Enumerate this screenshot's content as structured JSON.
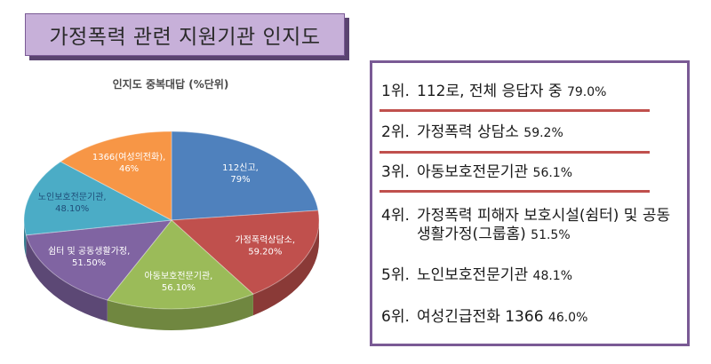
{
  "title": "가정폭력 관련 지원기관 인지도",
  "chart_data": {
    "type": "pie",
    "title": "인지도 중복대답 (%단위)",
    "slices": [
      {
        "label": "112신고",
        "value": 79,
        "display": "112신고, 79%",
        "color": "#4f81bd",
        "text_color": "#ffffff"
      },
      {
        "label": "가정폭력상담소",
        "value": 59.2,
        "display": "가정폭력상담소, 59.20%",
        "color": "#c0504d",
        "text_color": "#ffffff"
      },
      {
        "label": "아동보호전문기관",
        "value": 56.1,
        "display": "아동보호전문기관, 56.10%",
        "color": "#9bbb59",
        "text_color": "#ffffff"
      },
      {
        "label": "쉼터 및 공동생활가정",
        "value": 51.5,
        "display": "쉼터 및 공동생활가정, 51.50%",
        "color": "#8064a2",
        "text_color": "#ffffff"
      },
      {
        "label": "노인보호전문기관",
        "value": 48.1,
        "display": "노인보호전문기관, 48.10%",
        "color": "#4bacc6",
        "text_color": "#1f4e79"
      },
      {
        "label": "1366(여성의전화)",
        "value": 46,
        "display": "1366(여성의전화), 46%",
        "color": "#f79646",
        "text_color": "#ffffff"
      }
    ]
  },
  "ranking": [
    {
      "rank": "1위.",
      "text": "112로, 전체 응답자 중",
      "value": "79.0%"
    },
    {
      "rank": "2위.",
      "text": "가정폭력 상담소",
      "value": "59.2%"
    },
    {
      "rank": "3위.",
      "text": "아동보호전문기관",
      "value": "56.1%"
    },
    {
      "rank": "4위.",
      "text": "가정폭력 피해자 보호시설(쉼터) 및 공동생활가정(그룹홈)",
      "value": "51.5%"
    },
    {
      "rank": "5위.",
      "text": "노인보호전문기관",
      "value": "48.1%"
    },
    {
      "rank": "6위.",
      "text": "여성긴급전화 1366",
      "value": "46.0%"
    }
  ]
}
